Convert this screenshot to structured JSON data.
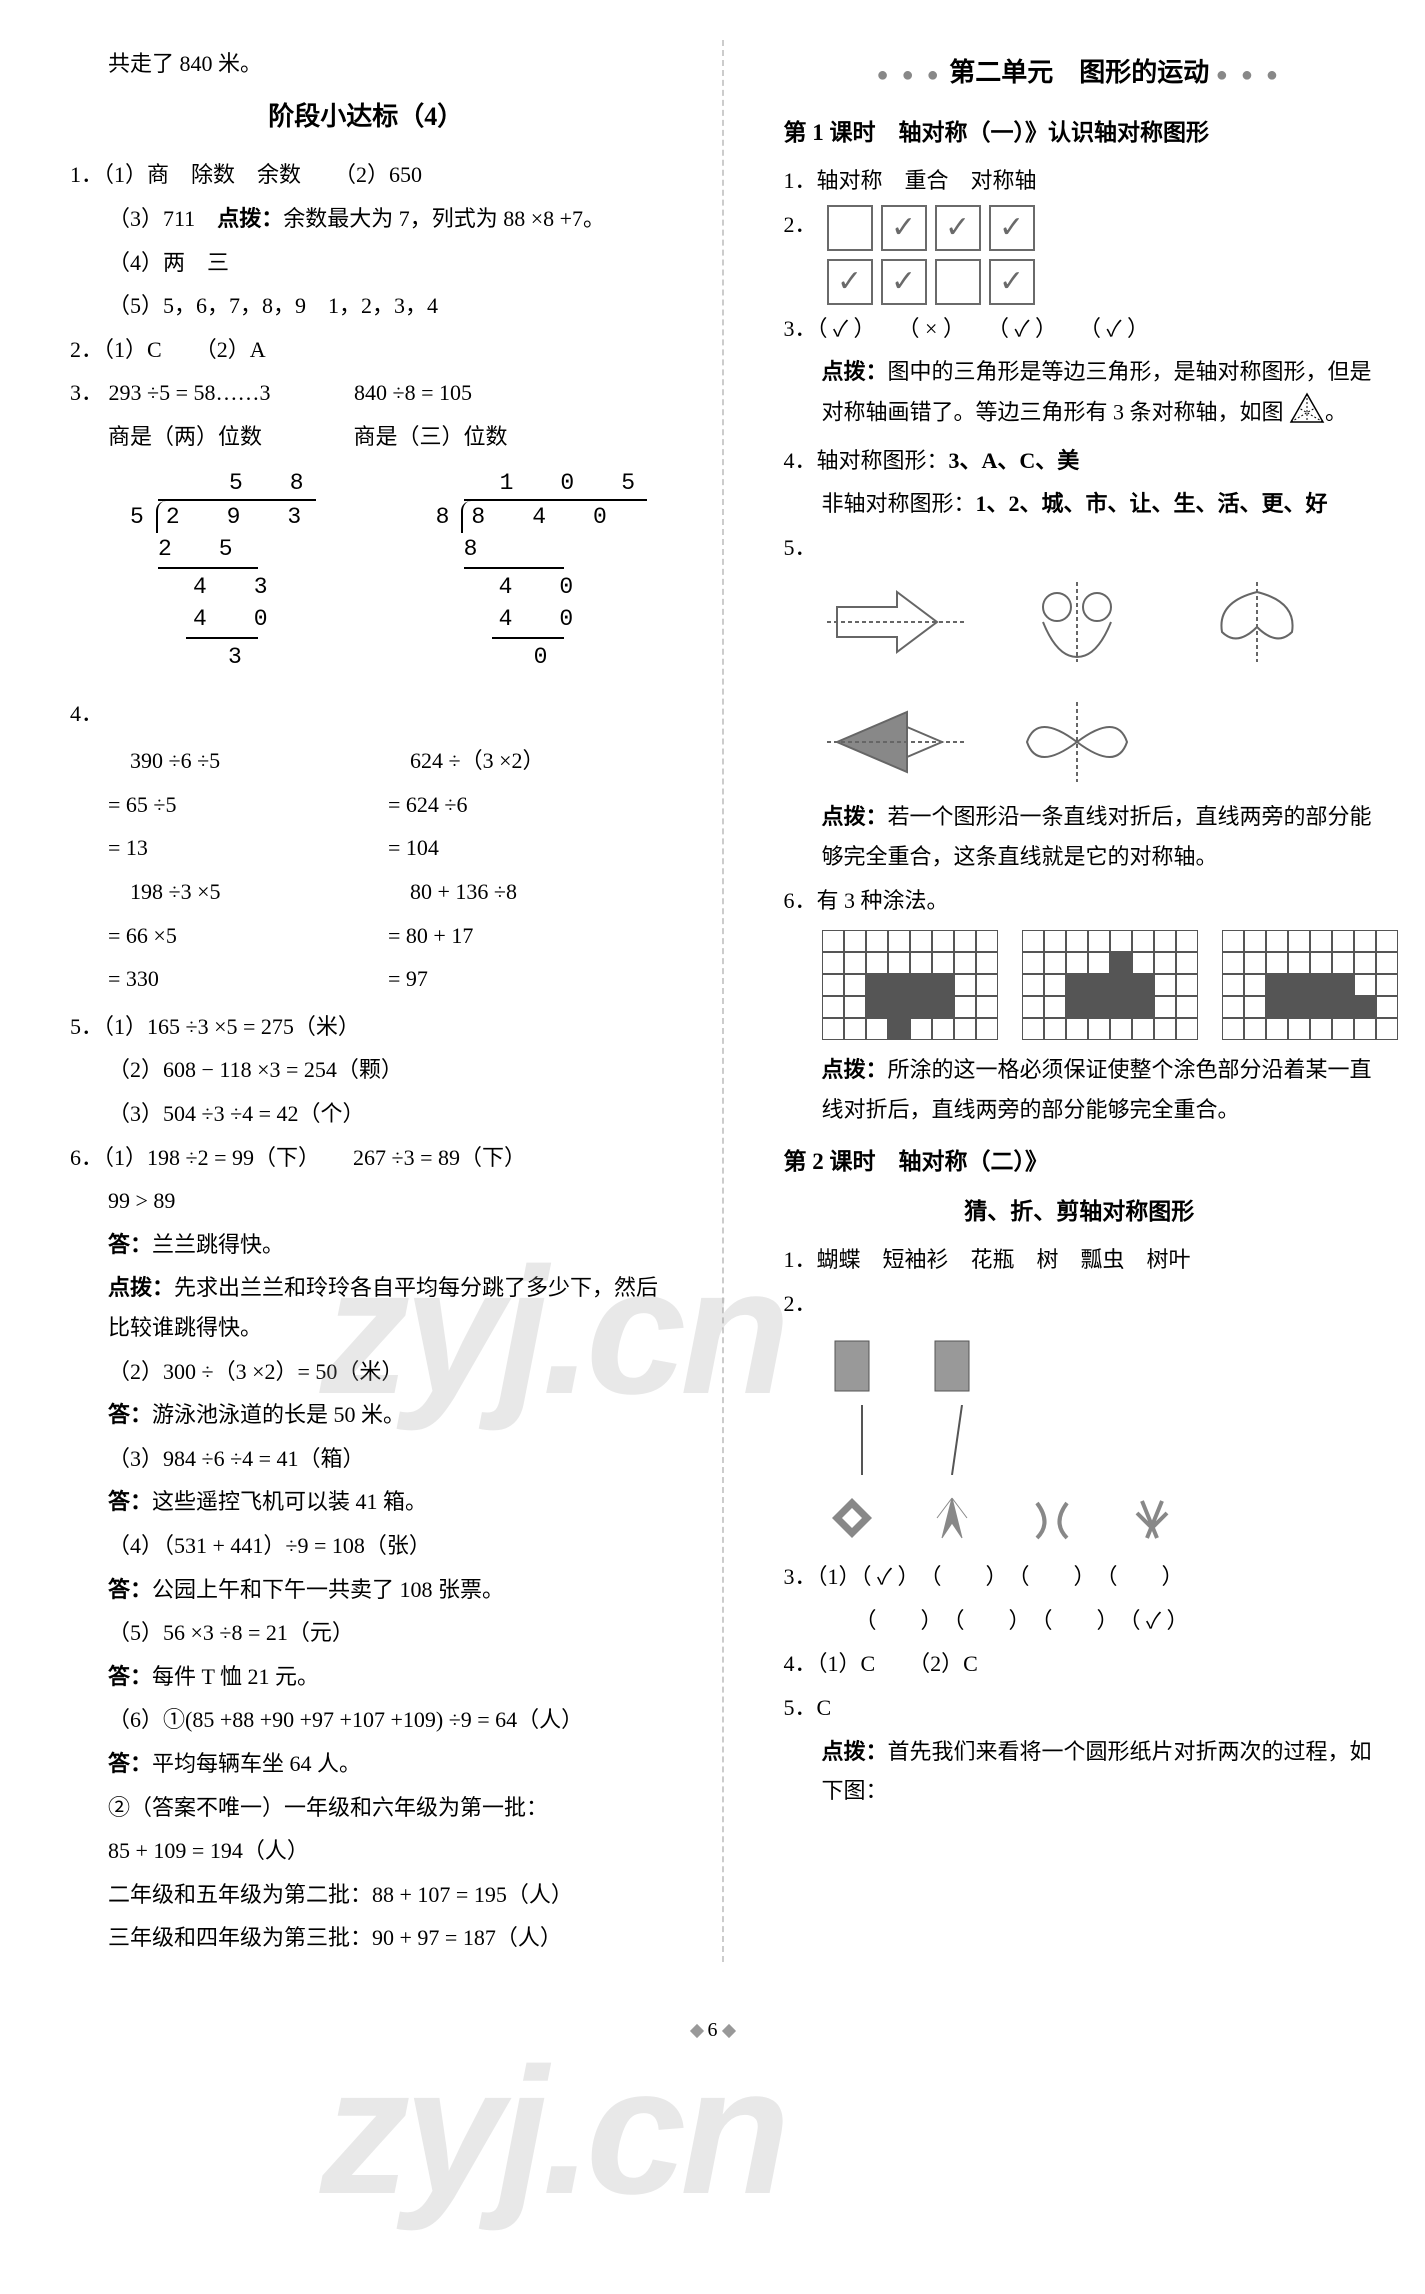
{
  "page_number": "6",
  "watermark_text": "zyj.cn",
  "left": {
    "intro_line": "共走了 840 米。",
    "title": "阶段小达标（4）",
    "q1": {
      "label": "1．",
      "l1": "（1）商　除数　余数　　（2）650",
      "l2_a": "（3）711　",
      "l2_b": "点拨：",
      "l2_c": "余数最大为 7，列式为 88 ×8 +7。",
      "l3": "（4）两　三",
      "l4": "（5）5，6，7，8，9　1，2，3，4"
    },
    "q2": {
      "label": "2．",
      "text": "（1）C　　（2）A"
    },
    "q3": {
      "label": "3．",
      "expr1": "293 ÷5 = 58……3",
      "expr2": "840 ÷8 = 105",
      "note1": "商是（两）位数",
      "note2": "商是（三）位数",
      "div1": {
        "quotient": "　5　8",
        "divisor": "5",
        "dividend": "2　9　3",
        "s1": "2　5",
        "s2": "　4　3",
        "s3": "　4　0",
        "s4": "　　3"
      },
      "div2": {
        "quotient": "1　0　5",
        "divisor": "8",
        "dividend": "8　4　0",
        "s1": "8",
        "s2": "　4　0",
        "s3": "　4　0",
        "s4": "　　0"
      }
    },
    "q4": {
      "label": "4．",
      "colA": [
        "　390 ÷6 ÷5",
        "= 65 ÷5",
        "= 13",
        "　198 ÷3 ×5",
        "= 66 ×5",
        "= 330"
      ],
      "colB": [
        "　624 ÷（3 ×2）",
        "= 624 ÷6",
        "= 104",
        "　80 + 136 ÷8",
        "= 80 + 17",
        "= 97"
      ]
    },
    "q5": {
      "label": "5．",
      "l1": "（1）165 ÷3 ×5 = 275（米）",
      "l2": "（2）608 − 118 ×3 = 254（颗）",
      "l3": "（3）504 ÷3 ÷4 = 42（个）"
    },
    "q6": {
      "label": "6．",
      "p1a": "（1）198 ÷2 = 99（下）　　267 ÷3 = 89（下）",
      "p1b": "99 > 89",
      "p1_ans_label": "答：",
      "p1_ans": "兰兰跳得快。",
      "p1_hint_label": "点拨：",
      "p1_hint": "先求出兰兰和玲玲各自平均每分跳了多少下，然后比较谁跳得快。",
      "p2a": "（2）300 ÷（3 ×2）= 50（米）",
      "p2_ans_label": "答：",
      "p2_ans": "游泳池泳道的长是 50 米。",
      "p3a": "（3）984 ÷6 ÷4 = 41（箱）",
      "p3_ans_label": "答：",
      "p3_ans": "这些遥控飞机可以装 41 箱。",
      "p4a": "（4）（531 + 441）÷9 = 108（张）",
      "p4_ans_label": "答：",
      "p4_ans": "公园上午和下午一共卖了 108 张票。",
      "p5a": "（5）56 ×3 ÷8 = 21（元）",
      "p5_ans_label": "答：",
      "p5_ans": "每件 T 恤 21 元。",
      "p6a": "（6）①(85 +88 +90 +97 +107 +109) ÷9 = 64（人）",
      "p6_ans_label": "答：",
      "p6_ans": "平均每辆车坐 64 人。",
      "p6b": "②（答案不唯一）一年级和六年级为第一批：",
      "p6c": "85 + 109 = 194（人）",
      "p6d": "二年级和五年级为第二批：88 + 107 = 195（人）",
      "p6e": "三年级和四年级为第三批：90 + 97 = 187（人）"
    }
  },
  "right": {
    "unit_title": "第二单元　图形的运动",
    "dots": "● ● ●",
    "lesson1": {
      "title": "第 1 课时　轴对称（一）》认识轴对称图形",
      "q1": "1．轴对称　重合　对称轴",
      "q2_label": "2．",
      "q2_checks": [
        "",
        "✓",
        "✓",
        "✓",
        "✓",
        "✓",
        "",
        "✓"
      ],
      "q3_label": "3．",
      "q3_text": "（ ✓ ）　　（ × ）　　（ ✓ ）　　（ ✓ ）",
      "q3_hint_label": "点拨：",
      "q3_hint_a": "图中的三角形是等边三角形，是轴对称图形，但是对称轴画错了。等边三角形有 3 条对称轴，如图",
      "q3_hint_b": "。",
      "q4_label": "4．",
      "q4_a": "轴对称图形：",
      "q4_a_bold": "3、A、C、美",
      "q4_b": "非轴对称图形：",
      "q4_b_bold": "1、2、城、市、让、生、活、更、好",
      "q5_label": "5．",
      "q5_hint_label": "点拨：",
      "q5_hint": "若一个图形沿一条直线对折后，直线两旁的部分能够完全重合，这条直线就是它的对称轴。",
      "q6_label": "6．",
      "q6_text": "有 3 种涂法。",
      "q6_grids": [
        {
          "filled": [
            18,
            19,
            20,
            21,
            26,
            27,
            28,
            29,
            35
          ]
        },
        {
          "filled": [
            18,
            19,
            20,
            21,
            26,
            27,
            28,
            29,
            12
          ]
        },
        {
          "filled": [
            18,
            19,
            20,
            21,
            26,
            27,
            28,
            29,
            30
          ]
        }
      ],
      "q6_hint_label": "点拨：",
      "q6_hint": "所涂的这一格必须保证使整个涂色部分沿着某一直线对折后，直线两旁的部分能够完全重合。"
    },
    "lesson2": {
      "title": "第 2 课时　轴对称（二）》",
      "subtitle": "猜、折、剪轴对称图形",
      "q1": "1．蝴蝶　短袖衫　花瓶　树　瓢虫　树叶",
      "q2_label": "2．",
      "q3_label": "3．",
      "q3_l1": "（1）（ ✓ ）　（　　）　（　　）　（　　）",
      "q3_l2": "　　（　　）　（　　）　（　　）　（ ✓ ）",
      "q4": "4．（1）C　　（2）C",
      "q5": "5．C",
      "q5_hint_label": "点拨：",
      "q5_hint": "首先我们来看将一个圆形纸片对折两次的过程，如下图："
    }
  },
  "colors": {
    "text": "#000000",
    "bg": "#ffffff",
    "divider": "#cccccc",
    "grid_border": "#555555",
    "checkbox_border": "#6a6a6a",
    "watermark": "rgba(150,150,150,0.22)"
  }
}
